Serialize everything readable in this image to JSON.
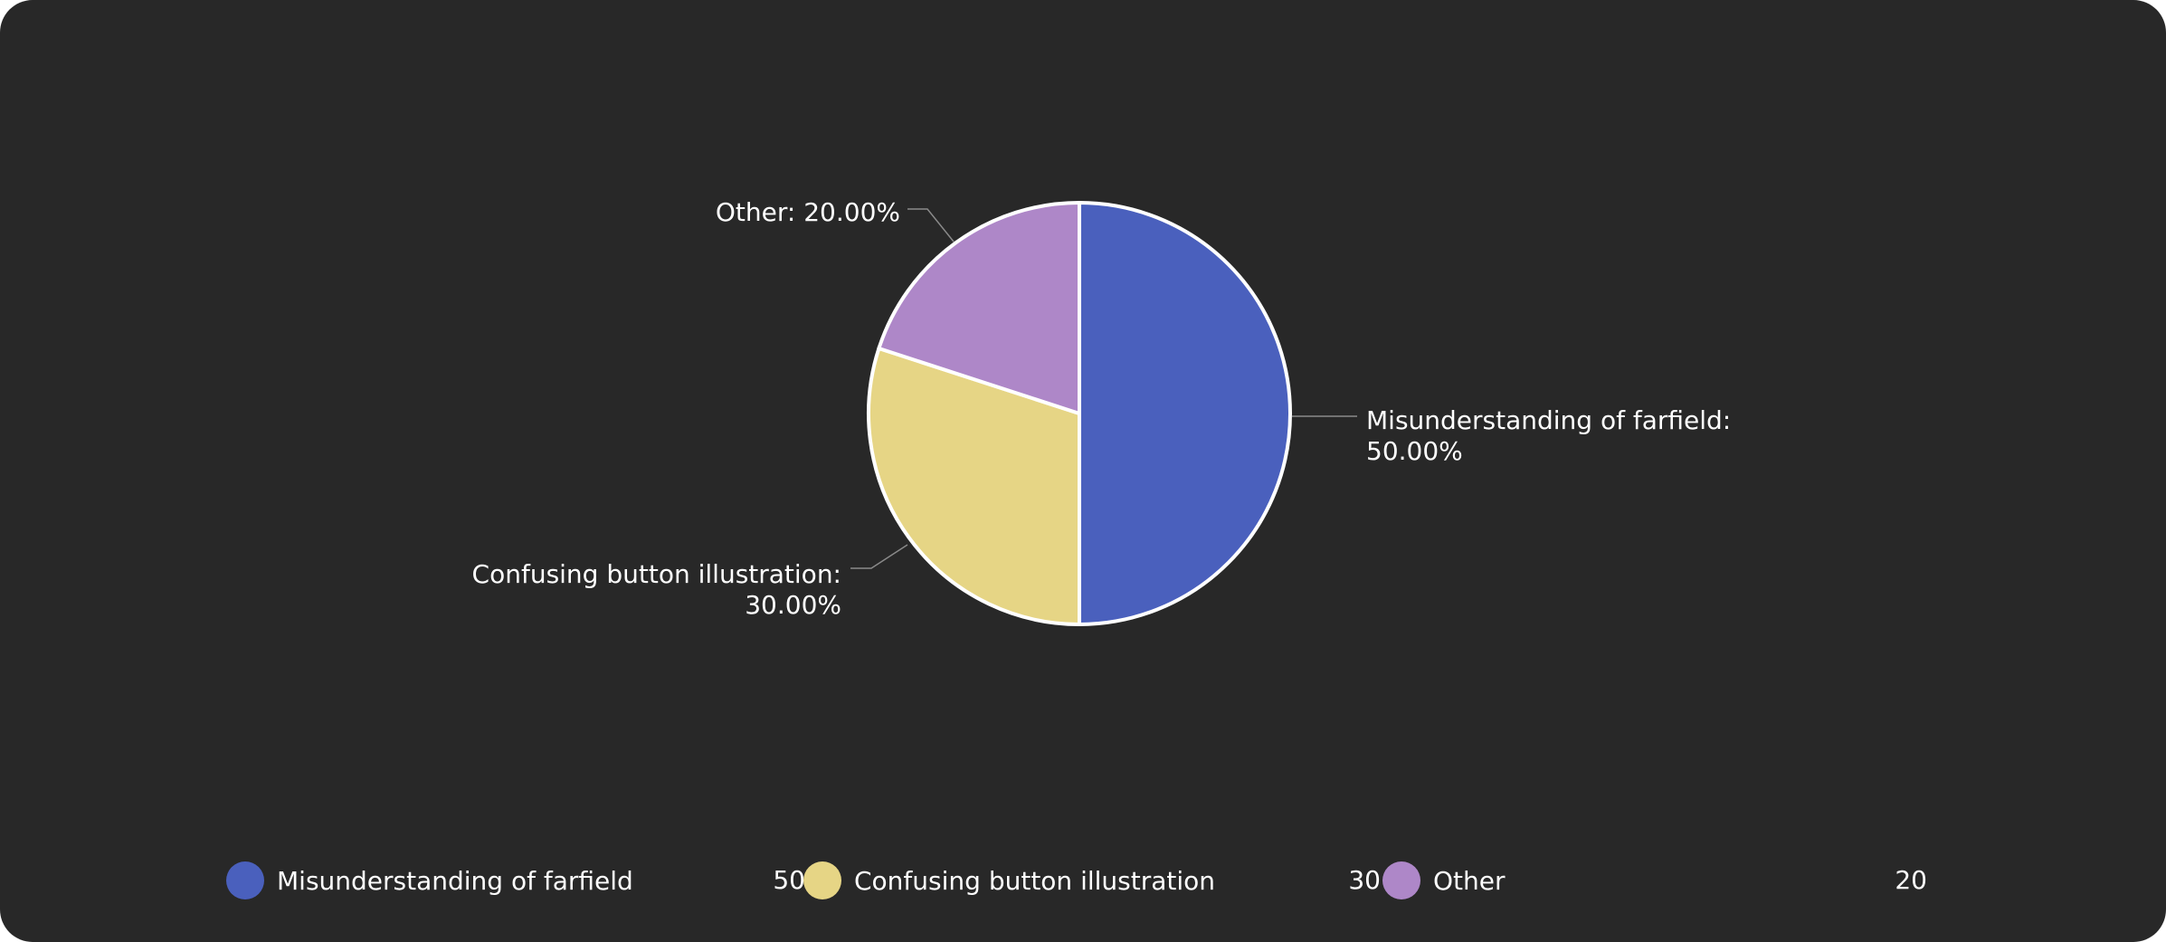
{
  "chart_data": {
    "type": "pie",
    "slices": [
      {
        "name": "Misunderstanding of farfield",
        "value": 50,
        "percent_label": "50.00%",
        "color": "#4a60bd"
      },
      {
        "name": "Confusing button illustration",
        "value": 30,
        "percent_label": "30.00%",
        "color": "#e6d585"
      },
      {
        "name": "Other",
        "value": 20,
        "percent_label": "20.00%",
        "color": "#ae87c8"
      }
    ],
    "legend_position": "bottom",
    "background": "#282828"
  },
  "legend": {
    "items": [
      {
        "name": "Misunderstanding of farfield",
        "value": "50",
        "color": "#4a60bd"
      },
      {
        "name": "Confusing button illustration",
        "value": "30",
        "color": "#e6d585"
      },
      {
        "name": "Other",
        "value": "20",
        "color": "#ae87c8"
      }
    ]
  }
}
